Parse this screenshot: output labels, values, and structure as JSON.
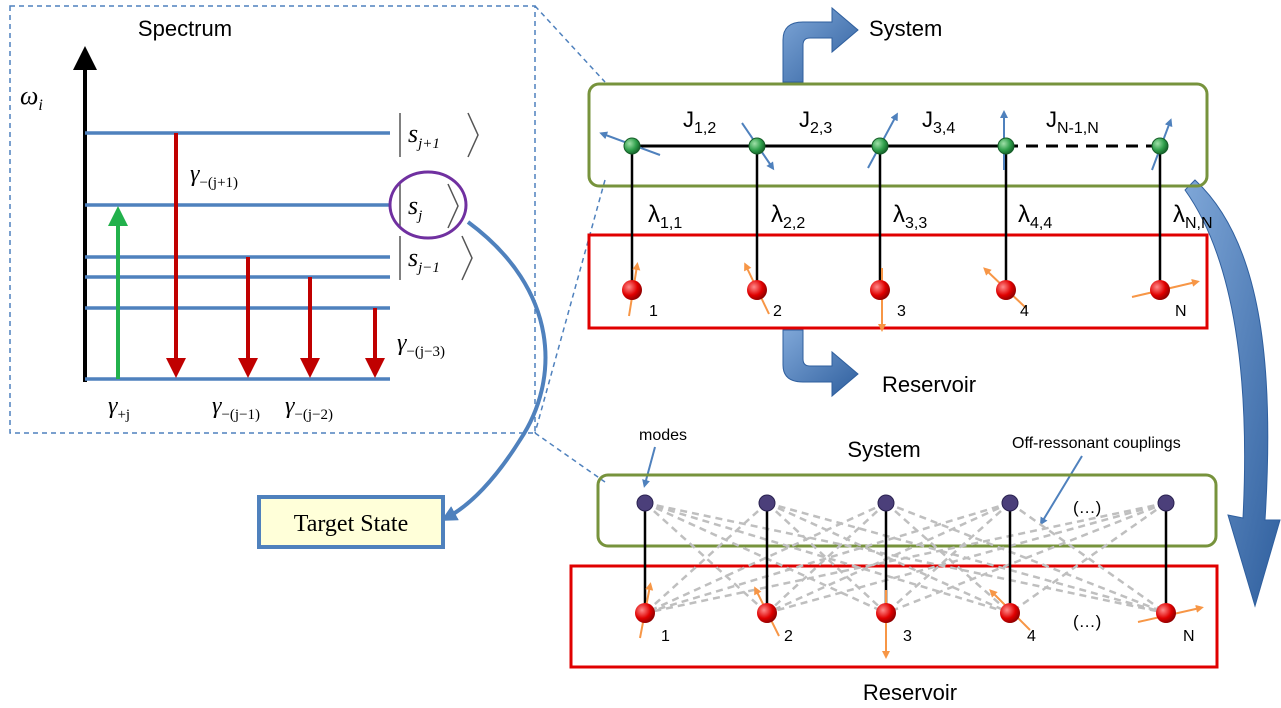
{
  "spectrum": {
    "title": "Spectrum",
    "axis_label": "ω",
    "axis_label_sub": "i",
    "kets": [
      {
        "symbol": "s",
        "sub": "j+1"
      },
      {
        "symbol": "s",
        "sub": "j"
      },
      {
        "symbol": "s",
        "sub": "j−1"
      }
    ],
    "rates": {
      "gamma_symbol": "γ",
      "g_j1": "−(j+1)",
      "g_j3": "−(j−3)",
      "g_plus": "+j",
      "g_jm1": "−(j−1)",
      "g_jm2": "−(j−2)"
    },
    "colors": {
      "level": "#4f81bd",
      "excite": "#22b14c",
      "decay": "#c00000",
      "circle": "#7030a0"
    }
  },
  "target_state": {
    "label": "Target State",
    "fill": "#ffffd9",
    "border": "#4f81bd"
  },
  "top_panel": {
    "system_label": "System",
    "reservoir_label": "Reservoir",
    "couplings_J": [
      {
        "text": "J",
        "sub": "1,2"
      },
      {
        "text": "J",
        "sub": "2,3"
      },
      {
        "text": "J",
        "sub": "3,4"
      },
      {
        "text": "J",
        "sub": "N-1,N"
      }
    ],
    "lambdas": [
      {
        "text": "λ",
        "sub": "1,1"
      },
      {
        "text": "λ",
        "sub": "2,2"
      },
      {
        "text": "λ",
        "sub": "3,3"
      },
      {
        "text": "λ",
        "sub": "4,4"
      },
      {
        "text": "λ",
        "sub": "N,N"
      }
    ],
    "spin_labels": [
      "1",
      "2",
      "3",
      "4",
      "N"
    ]
  },
  "bottom_panel": {
    "system_label": "System",
    "reservoir_label": "Reservoir",
    "modes_label": "modes",
    "offres_label": "Off-ressonant couplings",
    "ellipsis": "(…)",
    "spin_labels": [
      "1",
      "2",
      "3",
      "4",
      "N"
    ]
  },
  "colors": {
    "system_border": "#77933c",
    "reservoir_border": "#e00000",
    "big_arrow": "#4f81bd",
    "spin_red": "#e00000",
    "spin_green": "#2e9e4a",
    "mode_node": "#4b3f7a",
    "spin_arrow_blue": "#4f81bd",
    "spin_arrow_orange": "#f79646",
    "dashed_link": "#bfbfbf"
  }
}
